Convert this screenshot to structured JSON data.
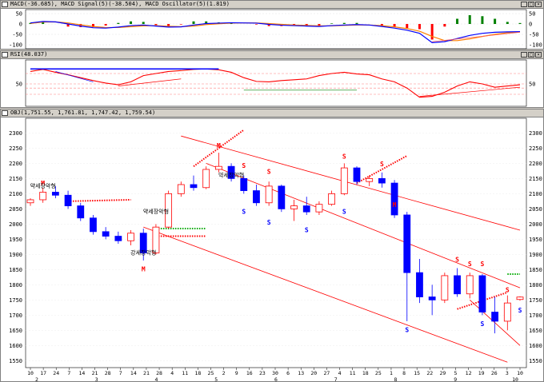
{
  "macd_panel": {
    "title": "MACD(-36.685), MACD Signal(5)(-38.504), MACD Oscillator(5)(1.819)",
    "y_ticks": [
      "50",
      "0",
      "-50",
      "-100"
    ],
    "colors": {
      "macd": "#0000ff",
      "signal": "#ff8000",
      "oscillator_up": "#008000",
      "oscillator_down": "#ff0000"
    }
  },
  "rsi_panel": {
    "title": "RSI(48.037)",
    "y_ticks": [
      "50"
    ],
    "colors": {
      "rsi": "#ff0000",
      "guide": "#ff8080"
    }
  },
  "main_panel": {
    "title": "OBJ(1,751.55, 1,761.81, 1,747.42, 1,759.54)",
    "y_ticks": [
      "2300",
      "2250",
      "2200",
      "2150",
      "2100",
      "2050",
      "2000",
      "1950",
      "1900",
      "1850",
      "1800",
      "1750",
      "1700",
      "1650",
      "1600",
      "1550"
    ],
    "annotations": [
      {
        "label": "M",
        "kind": "peak"
      },
      {
        "label": "M",
        "kind": "peak"
      },
      {
        "label": "M",
        "kind": "peak"
      },
      {
        "label": "S",
        "kind": "peak"
      },
      {
        "label": "S",
        "kind": "peak"
      },
      {
        "label": "S",
        "kind": "peak"
      },
      {
        "label": "S",
        "kind": "peak"
      },
      {
        "label": "S",
        "kind": "peak"
      },
      {
        "label": "S",
        "kind": "peak"
      },
      {
        "label": "S",
        "kind": "peak"
      },
      {
        "label": "S",
        "kind": "peak"
      },
      {
        "label": "S",
        "kind": "trough"
      },
      {
        "label": "S",
        "kind": "trough"
      },
      {
        "label": "S",
        "kind": "trough"
      },
      {
        "label": "S",
        "kind": "trough"
      },
      {
        "label": "S",
        "kind": "trough"
      },
      {
        "label": "S",
        "kind": "trough"
      },
      {
        "label": "S",
        "kind": "trough"
      },
      {
        "label": "M",
        "kind": "trough"
      }
    ],
    "pattern_labels": [
      "약세장악형",
      "약세장악형",
      "약세장악형",
      "강세장악형"
    ],
    "colors": {
      "up": "#ff0000",
      "down": "#0000ff",
      "trendline": "#ff0000",
      "green_line": "#00aa00"
    }
  },
  "x_axis": {
    "day_ticks": [
      "10",
      "17",
      "24",
      "7",
      "14",
      "21",
      "28",
      "7",
      "14",
      "21",
      "28",
      "4",
      "11",
      "18",
      "25",
      "2",
      "9",
      "16",
      "23",
      "30",
      "6",
      "13",
      "20",
      "27",
      "4",
      "11",
      "18",
      "25",
      "1",
      "8",
      "15",
      "22",
      "29",
      "5",
      "12",
      "19",
      "26",
      "3",
      "10"
    ],
    "month_ticks": [
      "2",
      "3",
      "4",
      "5",
      "6",
      "7",
      "8",
      "9",
      "10"
    ]
  },
  "chart_data": {
    "type": "candlestick",
    "title": "OBJ(1,751.55, 1,761.81, 1,747.42, 1,759.54)",
    "last_bar": {
      "open": 1751.55,
      "high": 1761.81,
      "low": 1747.42,
      "close": 1759.54
    },
    "ylim": [
      1535,
      2330
    ],
    "x_start": "2001-01-10",
    "x_end": "2001-10-10",
    "bars": [
      {
        "date": "2001-01-10",
        "open": 2070,
        "high": 2085,
        "low": 2060,
        "close": 2080
      },
      {
        "date": "2001-01-17",
        "open": 2080,
        "high": 2120,
        "low": 2070,
        "close": 2105
      },
      {
        "date": "2001-01-24",
        "open": 2105,
        "high": 2125,
        "low": 2085,
        "close": 2095
      },
      {
        "date": "2001-02-02",
        "open": 2095,
        "high": 2110,
        "low": 2050,
        "close": 2060
      },
      {
        "date": "2001-02-07",
        "open": 2060,
        "high": 2070,
        "low": 2010,
        "close": 2020
      },
      {
        "date": "2001-02-14",
        "open": 2020,
        "high": 2030,
        "low": 1965,
        "close": 1975
      },
      {
        "date": "2001-02-21",
        "open": 1975,
        "high": 1990,
        "low": 1950,
        "close": 1960
      },
      {
        "date": "2001-02-28",
        "open": 1960,
        "high": 1975,
        "low": 1935,
        "close": 1945
      },
      {
        "date": "2001-03-07",
        "open": 1945,
        "high": 1980,
        "low": 1930,
        "close": 1970
      },
      {
        "date": "2001-03-14",
        "open": 1970,
        "high": 1985,
        "low": 1880,
        "close": 1905
      },
      {
        "date": "2001-03-21",
        "open": 1905,
        "high": 2000,
        "low": 1900,
        "close": 1990
      },
      {
        "date": "2001-03-28",
        "open": 1990,
        "high": 2110,
        "low": 1985,
        "close": 2100
      },
      {
        "date": "2001-04-04",
        "open": 2100,
        "high": 2140,
        "low": 2090,
        "close": 2130
      },
      {
        "date": "2001-04-11",
        "open": 2130,
        "high": 2160,
        "low": 2110,
        "close": 2120
      },
      {
        "date": "2001-04-18",
        "open": 2120,
        "high": 2190,
        "low": 2115,
        "close": 2180
      },
      {
        "date": "2001-04-25",
        "open": 2180,
        "high": 2235,
        "low": 2170,
        "close": 2190
      },
      {
        "date": "2001-05-02",
        "open": 2190,
        "high": 2200,
        "low": 2140,
        "close": 2150
      },
      {
        "date": "2001-05-09",
        "open": 2150,
        "high": 2160,
        "low": 2100,
        "close": 2110
      },
      {
        "date": "2001-05-16",
        "open": 2110,
        "high": 2130,
        "low": 2060,
        "close": 2070
      },
      {
        "date": "2001-05-23",
        "open": 2070,
        "high": 2140,
        "low": 2060,
        "close": 2125
      },
      {
        "date": "2001-05-30",
        "open": 2125,
        "high": 2130,
        "low": 2040,
        "close": 2050
      },
      {
        "date": "2001-06-06",
        "open": 2050,
        "high": 2080,
        "low": 2010,
        "close": 2060
      },
      {
        "date": "2001-06-13",
        "open": 2060,
        "high": 2090,
        "low": 2030,
        "close": 2040
      },
      {
        "date": "2001-06-20",
        "open": 2040,
        "high": 2075,
        "low": 2030,
        "close": 2065
      },
      {
        "date": "2001-06-27",
        "open": 2065,
        "high": 2110,
        "low": 2060,
        "close": 2100
      },
      {
        "date": "2001-07-04",
        "open": 2100,
        "high": 2200,
        "low": 2095,
        "close": 2185
      },
      {
        "date": "2001-07-11",
        "open": 2185,
        "high": 2190,
        "low": 2130,
        "close": 2140
      },
      {
        "date": "2001-07-18",
        "open": 2140,
        "high": 2160,
        "low": 2125,
        "close": 2150
      },
      {
        "date": "2001-07-25",
        "open": 2150,
        "high": 2170,
        "low": 2120,
        "close": 2135
      },
      {
        "date": "2001-08-01",
        "open": 2135,
        "high": 2145,
        "low": 2020,
        "close": 2030
      },
      {
        "date": "2001-08-08",
        "open": 2030,
        "high": 2040,
        "low": 1680,
        "close": 1840
      },
      {
        "date": "2001-08-15",
        "open": 1840,
        "high": 1885,
        "low": 1740,
        "close": 1760
      },
      {
        "date": "2001-08-22",
        "open": 1760,
        "high": 1800,
        "low": 1700,
        "close": 1750
      },
      {
        "date": "2001-08-29",
        "open": 1750,
        "high": 1840,
        "low": 1740,
        "close": 1830
      },
      {
        "date": "2001-09-05",
        "open": 1830,
        "high": 1855,
        "low": 1760,
        "close": 1770
      },
      {
        "date": "2001-09-12",
        "open": 1770,
        "high": 1840,
        "low": 1755,
        "close": 1830
      },
      {
        "date": "2001-09-19",
        "open": 1830,
        "high": 1835,
        "low": 1700,
        "close": 1710
      },
      {
        "date": "2001-09-26",
        "open": 1710,
        "high": 1760,
        "low": 1640,
        "close": 1680
      },
      {
        "date": "2001-10-03",
        "open": 1680,
        "high": 1765,
        "low": 1650,
        "close": 1740
      },
      {
        "date": "2001-10-10",
        "open": 1751.55,
        "high": 1761.81,
        "low": 1747.42,
        "close": 1759.54
      }
    ],
    "macd": [
      5,
      12,
      10,
      0,
      -10,
      -18,
      -20,
      -15,
      -8,
      -5,
      -10,
      -15,
      -14,
      -5,
      2,
      4,
      6,
      5,
      4,
      -2,
      -6,
      -8,
      -10,
      -12,
      -8,
      -5,
      -3,
      -5,
      -12,
      -20,
      -30,
      -45,
      -90,
      -85,
      -70,
      -55,
      -45,
      -40,
      -38,
      -36.685
    ],
    "macd_signal": [
      3,
      9,
      10,
      5,
      -4,
      -12,
      -17,
      -17,
      -13,
      -9,
      -8,
      -11,
      -13,
      -10,
      -3,
      1,
      4,
      5,
      5,
      2,
      -2,
      -5,
      -7,
      -9,
      -9,
      -7,
      -5,
      -5,
      -8,
      -14,
      -22,
      -35,
      -60,
      -80,
      -80,
      -72,
      -60,
      -50,
      -42,
      -38.504
    ],
    "rsi": [
      80,
      85,
      78,
      72,
      65,
      58,
      52,
      48,
      55,
      70,
      75,
      80,
      82,
      85,
      86,
      84,
      78,
      65,
      56,
      55,
      58,
      60,
      62,
      70,
      75,
      78,
      74,
      72,
      62,
      55,
      40,
      18,
      20,
      30,
      45,
      55,
      50,
      42,
      45,
      48.037
    ]
  }
}
